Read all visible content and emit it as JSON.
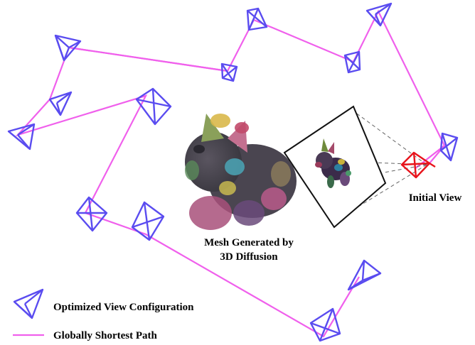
{
  "labels": {
    "mesh_line1": "Mesh Generated by",
    "mesh_line2": "3D Diffusion",
    "initial_view": "Initial View",
    "legend_camera": "Optimized View Configuration",
    "legend_path": "Globally Shortest Path"
  },
  "colors": {
    "camera": "#5a4cf0",
    "path": "#f060ec",
    "initial_camera": "#e8141c",
    "frustum_dash": "#666666",
    "image_frame": "#111111"
  },
  "icons": {
    "camera": "camera-pyramid-icon",
    "initial_camera": "initial-camera-icon"
  }
}
